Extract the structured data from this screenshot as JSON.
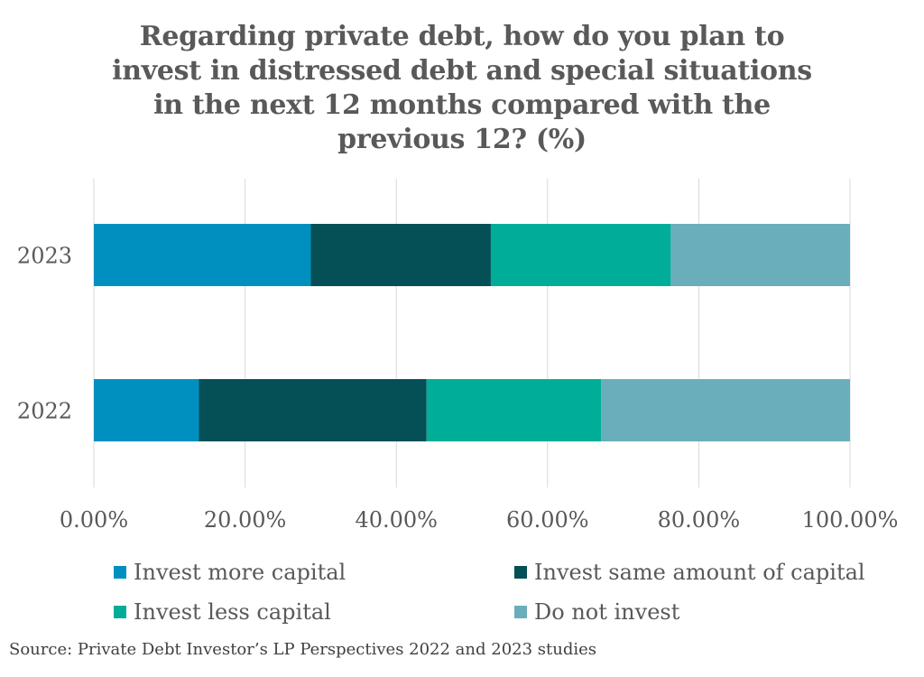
{
  "chart_data": {
    "type": "bar",
    "orientation": "horizontal",
    "stacked": true,
    "title": "Regarding private debt, how do you plan to\ninvest in distressed debt and special situations\nin the next 12 months compared with the\nprevious 12? (%)",
    "categories": [
      "2023",
      "2022"
    ],
    "series": [
      {
        "name": "Invest more capital",
        "color": "#0090bf",
        "values": [
          28.7,
          13.9
        ]
      },
      {
        "name": "Invest same amount of capital",
        "color": "#054f56",
        "values": [
          23.8,
          30.1
        ]
      },
      {
        "name": "Invest less capital",
        "color": "#00ad98",
        "values": [
          23.8,
          23.1
        ]
      },
      {
        "name": "Do not invest",
        "color": "#6aaebb",
        "values": [
          23.7,
          32.9
        ]
      }
    ],
    "xlim": [
      0,
      100
    ],
    "x_ticks": [
      "0.00%",
      "20.00%",
      "40.00%",
      "60.00%",
      "80.00%",
      "100.00%"
    ],
    "x_tick_values": [
      0,
      20,
      40,
      60,
      80,
      100
    ],
    "grid": "vertical",
    "legend_position": "bottom"
  },
  "source": "Source: Private Debt Investor’s LP Perspectives 2022 and 2023 studies"
}
